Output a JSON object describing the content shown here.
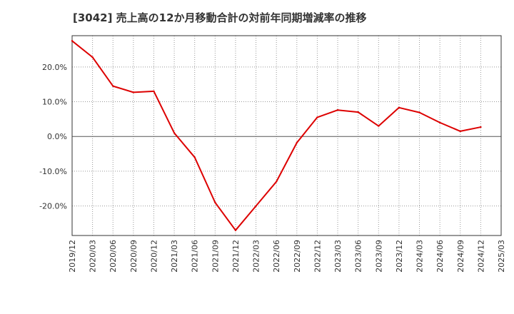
{
  "chart_data": {
    "type": "line",
    "title": "[3042]  売上高の12か月移動合計の対前年同期増減率の推移",
    "xlabel": "",
    "ylabel": "",
    "ylim": [
      -28.5,
      29.0
    ],
    "yticks": [
      -20,
      -10,
      0,
      10,
      20
    ],
    "ytick_labels": [
      "-20.0%",
      "-10.0%",
      "0.0%",
      "10.0%",
      "20.0%"
    ],
    "xtick_labels": [
      "2019/12",
      "2020/03",
      "2020/06",
      "2020/09",
      "2020/12",
      "2021/03",
      "2021/06",
      "2021/09",
      "2021/12",
      "2022/03",
      "2022/06",
      "2022/09",
      "2022/12",
      "2023/03",
      "2023/06",
      "2023/09",
      "2023/12",
      "2024/03",
      "2024/06",
      "2024/09",
      "2024/12",
      "2025/03"
    ],
    "grid": true,
    "series": [
      {
        "name": "増減率",
        "color": "#dd0000",
        "x": [
          "2019/12",
          "2020/03",
          "2020/06",
          "2020/09",
          "2020/12",
          "2021/03",
          "2021/06",
          "2021/09",
          "2021/12",
          "2022/03",
          "2022/06",
          "2022/09",
          "2022/12",
          "2023/03",
          "2023/06",
          "2023/09",
          "2023/12",
          "2024/03",
          "2024/06",
          "2024/09",
          "2024/12"
        ],
        "values": [
          27.5,
          22.8,
          14.5,
          12.7,
          13.0,
          1.0,
          -6.0,
          -19.0,
          -27.0,
          -20.0,
          -13.0,
          -1.8,
          5.5,
          7.6,
          7.0,
          3.0,
          8.3,
          6.9,
          4.0,
          1.5,
          2.7
        ]
      }
    ]
  }
}
